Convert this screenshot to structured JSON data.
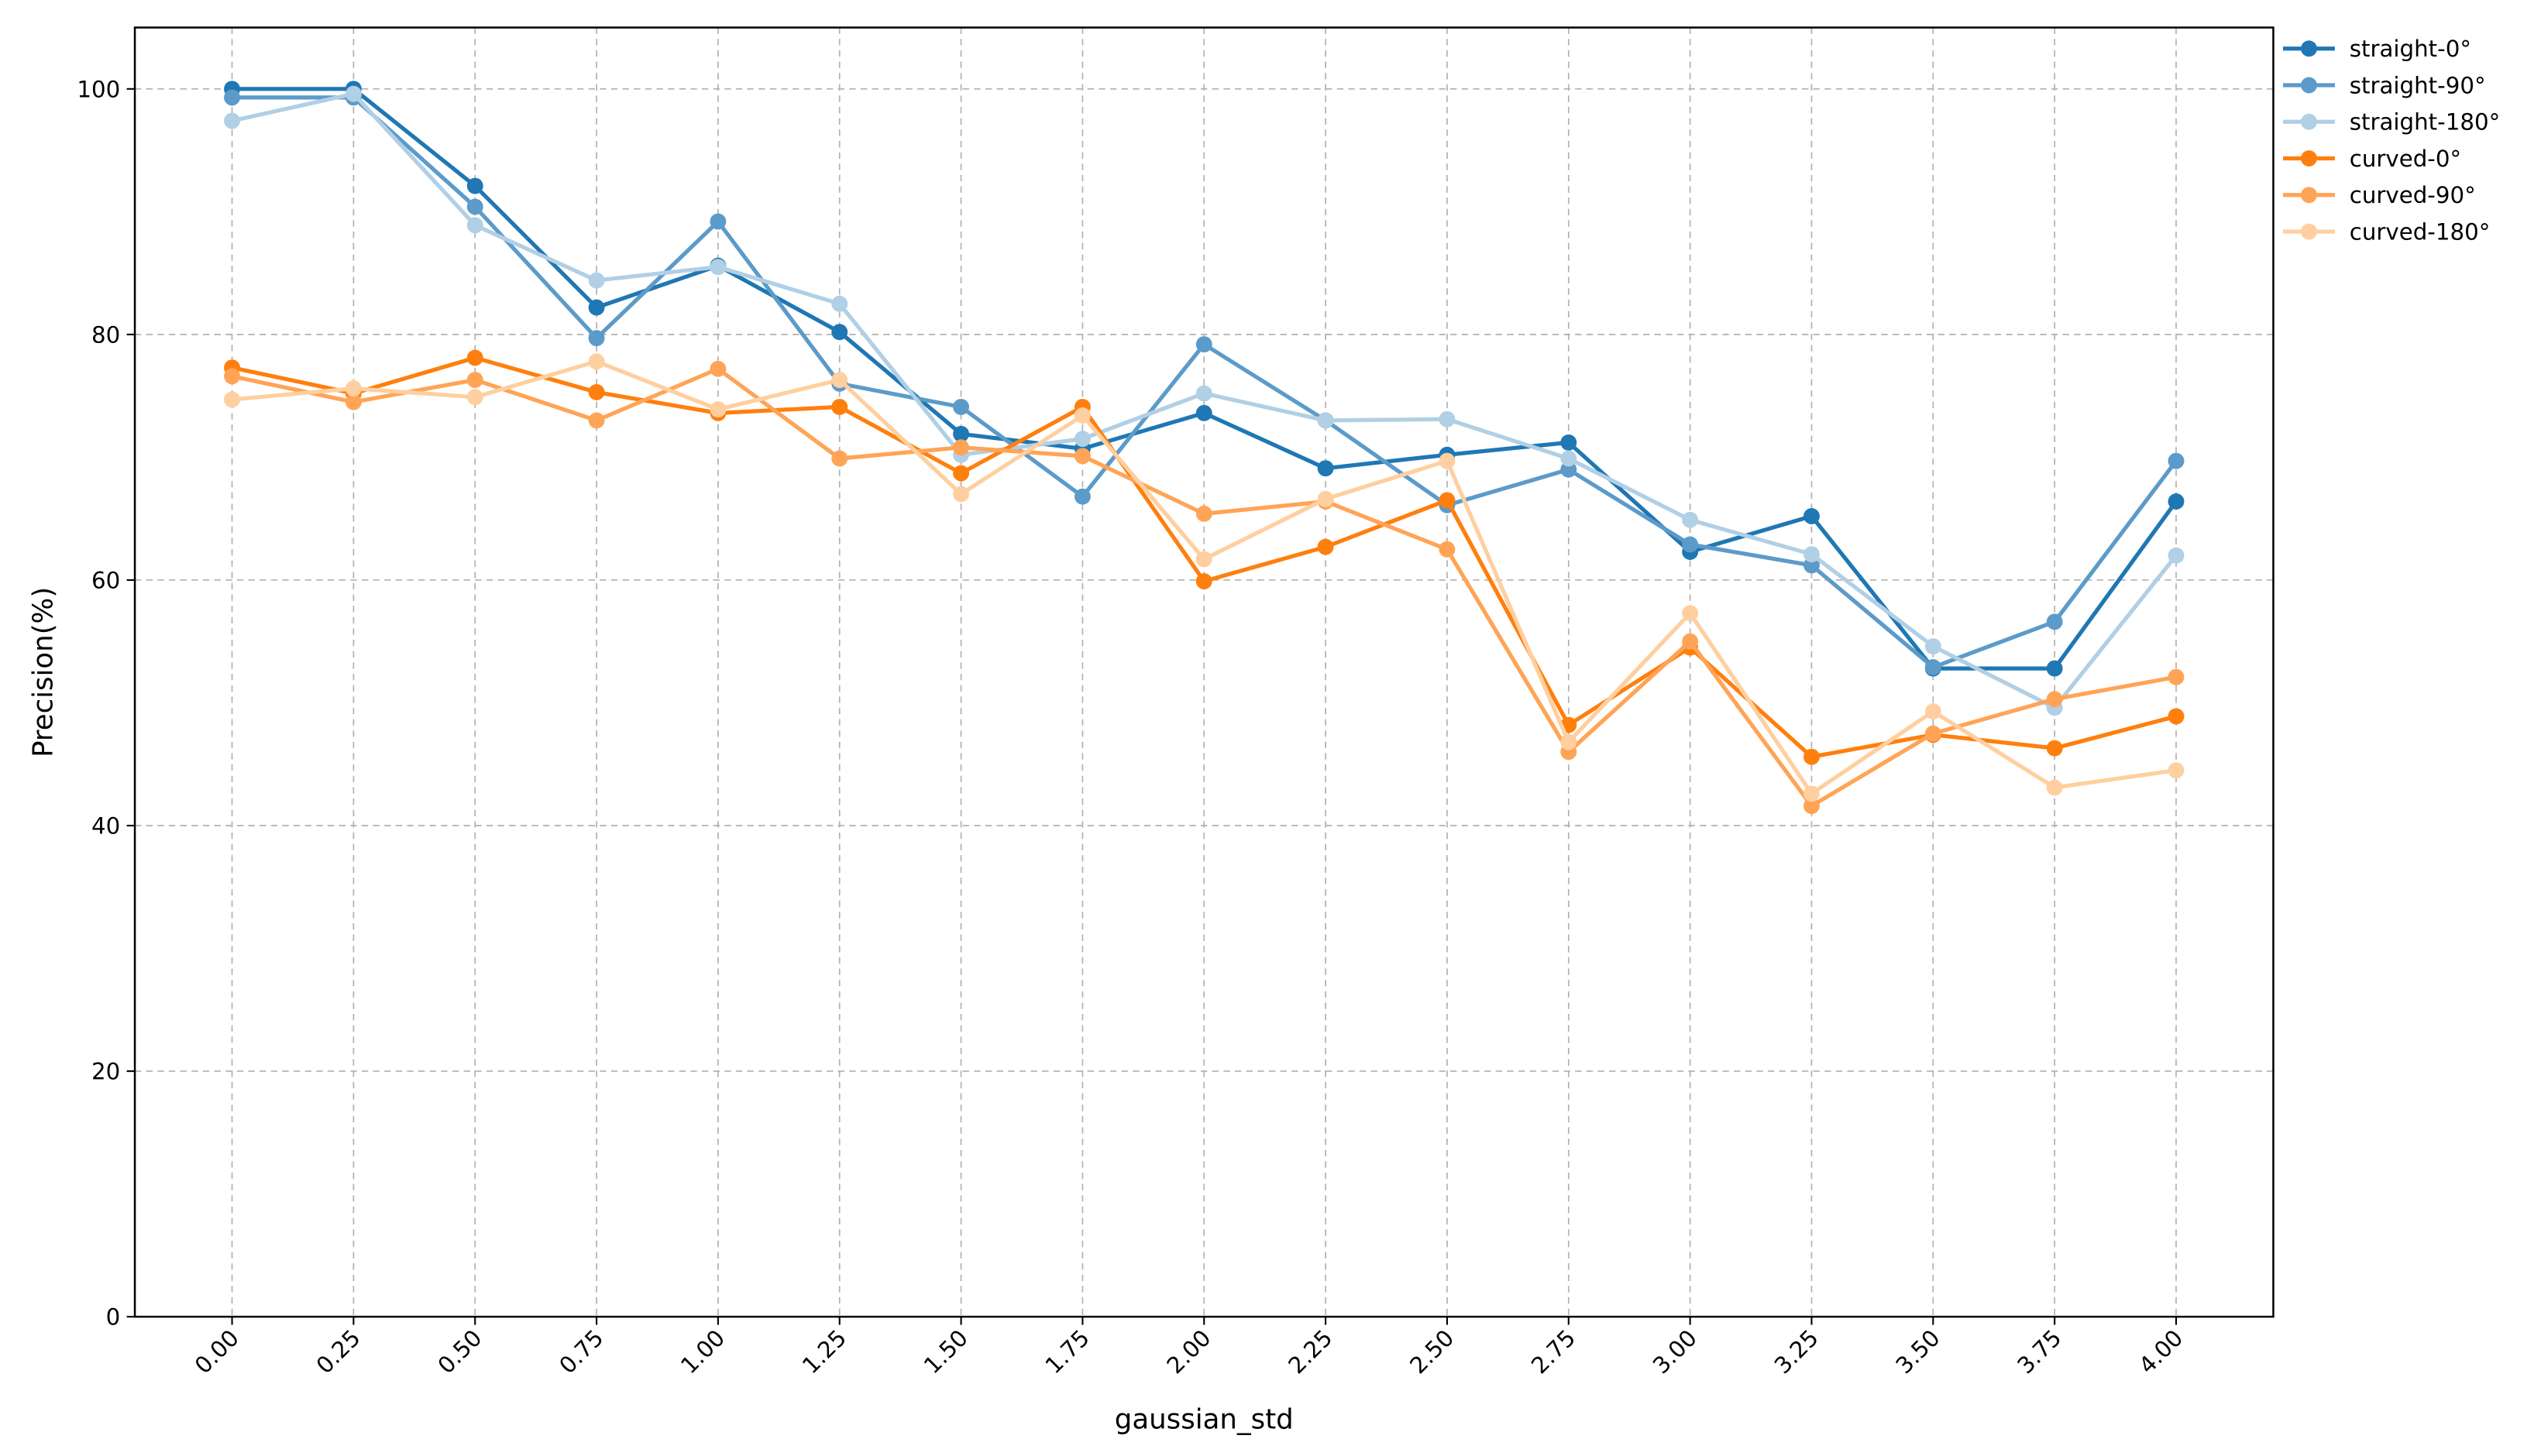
{
  "chart_data": {
    "type": "line",
    "xlabel": "gaussian_std",
    "ylabel": "Precision(%)",
    "x": [
      0,
      0.25,
      0.5,
      0.75,
      1,
      1.25,
      1.5,
      1.75,
      2,
      2.25,
      2.5,
      2.75,
      3,
      3.25,
      3.5,
      3.75,
      4
    ],
    "xlim": [
      -0.2,
      4.2
    ],
    "xticks": [
      {
        "value": 0,
        "label": "0.00"
      },
      {
        "value": 0.25,
        "label": "0.25"
      },
      {
        "value": 0.5,
        "label": "0.50"
      },
      {
        "value": 0.75,
        "label": "0.75"
      },
      {
        "value": 1,
        "label": "1.00"
      },
      {
        "value": 1.25,
        "label": "1.25"
      },
      {
        "value": 1.5,
        "label": "1.50"
      },
      {
        "value": 1.75,
        "label": "1.75"
      },
      {
        "value": 2,
        "label": "2.00"
      },
      {
        "value": 2.25,
        "label": "2.25"
      },
      {
        "value": 2.5,
        "label": "2.50"
      },
      {
        "value": 2.75,
        "label": "2.75"
      },
      {
        "value": 3,
        "label": "3.00"
      },
      {
        "value": 3.25,
        "label": "3.25"
      },
      {
        "value": 3.5,
        "label": "3.50"
      },
      {
        "value": 3.75,
        "label": "3.75"
      },
      {
        "value": 4,
        "label": "4.00"
      }
    ],
    "ylim": [
      0,
      105
    ],
    "yticks": [
      0,
      20,
      40,
      60,
      80,
      100
    ],
    "grid": true,
    "legend": "outside-upper-right",
    "series": [
      {
        "name": "straight-0°",
        "color": "#1f77b4",
        "values": [
          100,
          100,
          92.1,
          82.2,
          85.6,
          80.2,
          71.9,
          70.7,
          73.6,
          69.1,
          70.2,
          71.2,
          62.3,
          65.2,
          52.8,
          52.8,
          66.4
        ]
      },
      {
        "name": "straight-90°",
        "color": "#5c9bc9",
        "values": [
          99.3,
          99.3,
          90.4,
          79.7,
          89.2,
          76.0,
          74.1,
          66.8,
          79.2,
          73.0,
          66.1,
          69.0,
          62.9,
          61.2,
          52.9,
          56.6,
          69.7
        ]
      },
      {
        "name": "straight-180°",
        "color": "#b1cfe5",
        "values": [
          97.4,
          99.6,
          88.9,
          84.4,
          85.5,
          82.5,
          70.2,
          71.5,
          75.2,
          73.0,
          73.1,
          69.9,
          64.9,
          62.1,
          54.6,
          49.6,
          62.0
        ]
      },
      {
        "name": "curved-0°",
        "color": "#ff7f0e",
        "values": [
          77.3,
          75.2,
          78.1,
          75.3,
          73.6,
          74.1,
          68.7,
          74.1,
          59.9,
          62.7,
          66.5,
          48.2,
          54.5,
          45.6,
          47.4,
          46.3,
          48.9
        ]
      },
      {
        "name": "curved-90°",
        "color": "#ffa456",
        "values": [
          76.6,
          74.5,
          76.3,
          73.0,
          77.2,
          69.9,
          70.8,
          70.1,
          65.4,
          66.4,
          62.5,
          46.0,
          55.0,
          41.6,
          47.5,
          50.3,
          52.1
        ]
      },
      {
        "name": "curved-180°",
        "color": "#ffcf9f",
        "values": [
          74.7,
          75.6,
          74.9,
          77.8,
          73.9,
          76.3,
          67.0,
          73.4,
          61.7,
          66.6,
          69.7,
          46.8,
          57.3,
          42.6,
          49.3,
          43.1,
          44.5
        ]
      }
    ]
  }
}
